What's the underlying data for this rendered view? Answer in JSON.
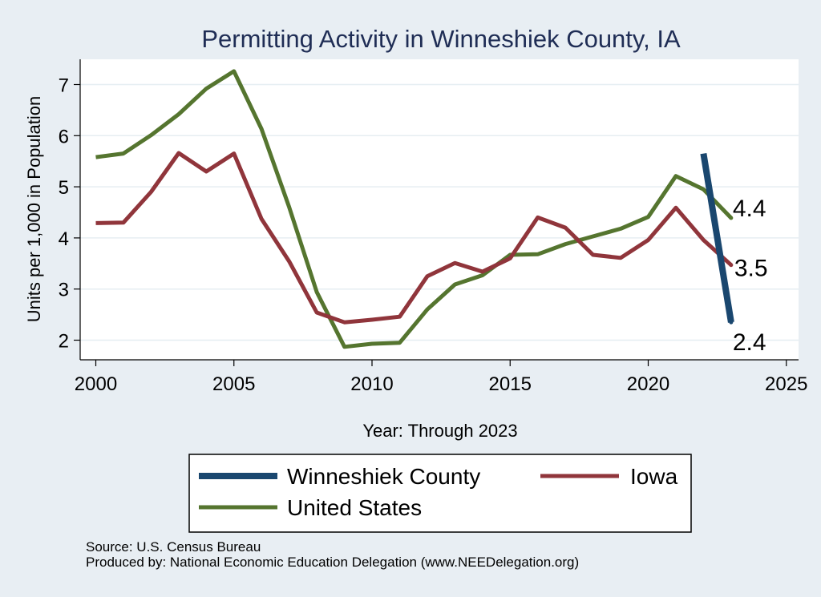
{
  "chart_data": {
    "type": "line",
    "title": "Permitting Activity in Winneshiek County, IA",
    "xlabel": "Year: Through 2023",
    "ylabel": "Units per 1,000 in Population",
    "xlim": [
      2000,
      2025
    ],
    "ylim": [
      1.7,
      7.4
    ],
    "x_ticks": [
      2000,
      2005,
      2010,
      2015,
      2020,
      2025
    ],
    "y_ticks": [
      2,
      3,
      4,
      5,
      6,
      7
    ],
    "grid": "horizontal",
    "legend_position": "bottom",
    "series": [
      {
        "name": "Winneshiek County",
        "color": "#1a476f",
        "x": [
          2022,
          2023
        ],
        "values": [
          5.65,
          2.35
        ],
        "end_label": "2.4"
      },
      {
        "name": "Iowa",
        "color": "#90353b",
        "x": [
          2000,
          2001,
          2002,
          2003,
          2004,
          2005,
          2006,
          2007,
          2008,
          2009,
          2010,
          2011,
          2012,
          2013,
          2014,
          2015,
          2016,
          2017,
          2018,
          2019,
          2020,
          2021,
          2022,
          2023
        ],
        "values": [
          4.29,
          4.3,
          4.9,
          5.66,
          5.3,
          5.65,
          4.37,
          3.54,
          2.54,
          2.35,
          2.4,
          2.46,
          3.25,
          3.51,
          3.34,
          3.6,
          4.4,
          4.2,
          3.67,
          3.61,
          3.96,
          4.59,
          3.96,
          3.47
        ],
        "end_label": "3.5"
      },
      {
        "name": "United States",
        "color": "#55752f",
        "x": [
          2000,
          2001,
          2002,
          2003,
          2004,
          2005,
          2006,
          2007,
          2008,
          2009,
          2010,
          2011,
          2012,
          2013,
          2014,
          2015,
          2016,
          2017,
          2018,
          2019,
          2020,
          2021,
          2022,
          2023
        ],
        "values": [
          5.58,
          5.65,
          6.01,
          6.42,
          6.92,
          7.26,
          6.13,
          4.6,
          2.94,
          1.87,
          1.93,
          1.95,
          2.6,
          3.09,
          3.27,
          3.67,
          3.68,
          3.88,
          4.03,
          4.18,
          4.41,
          5.21,
          4.95,
          4.39
        ],
        "end_label": "4.4"
      }
    ]
  },
  "notes": {
    "source": "Source: U.S. Census Bureau",
    "produced_by": "Produced by: National Economic Education Delegation (www.NEEDelegation.org)"
  }
}
